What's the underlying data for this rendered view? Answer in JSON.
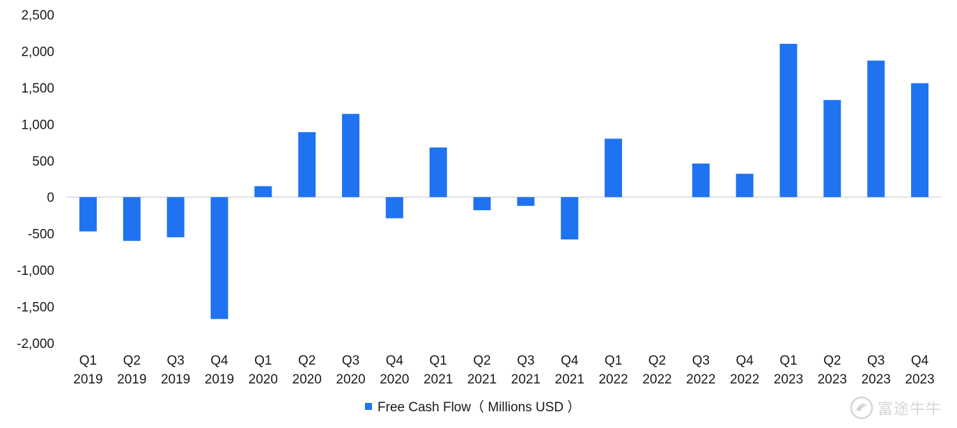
{
  "chart_data": {
    "type": "bar",
    "categories": [
      [
        "Q1",
        "2019"
      ],
      [
        "Q2",
        "2019"
      ],
      [
        "Q3",
        "2019"
      ],
      [
        "Q4",
        "2019"
      ],
      [
        "Q1",
        "2020"
      ],
      [
        "Q2",
        "2020"
      ],
      [
        "Q3",
        "2020"
      ],
      [
        "Q4",
        "2020"
      ],
      [
        "Q1",
        "2021"
      ],
      [
        "Q2",
        "2021"
      ],
      [
        "Q3",
        "2021"
      ],
      [
        "Q4",
        "2021"
      ],
      [
        "Q1",
        "2022"
      ],
      [
        "Q2",
        "2022"
      ],
      [
        "Q3",
        "2022"
      ],
      [
        "Q4",
        "2022"
      ],
      [
        "Q1",
        "2023"
      ],
      [
        "Q2",
        "2023"
      ],
      [
        "Q3",
        "2023"
      ],
      [
        "Q4",
        "2023"
      ]
    ],
    "series": [
      {
        "name": "Free Cash Flow（ Millions USD ）",
        "color": "#1f73f1",
        "values": [
          -470,
          -600,
          -550,
          -1670,
          150,
          890,
          1140,
          -290,
          680,
          -180,
          -120,
          -580,
          800,
          0,
          460,
          320,
          2100,
          1330,
          1870,
          1560
        ]
      }
    ],
    "ylim": [
      -2000,
      2500
    ],
    "yticks": [
      "2,500",
      "2,000",
      "1,500",
      "1,000",
      "500",
      "0",
      "-500",
      "-1,000",
      "-1,500",
      "-2,000"
    ],
    "ytick_values": [
      2500,
      2000,
      1500,
      1000,
      500,
      0,
      -500,
      -1000,
      -1500,
      -2000
    ],
    "legend": {
      "position": "bottom-center"
    },
    "grid": false,
    "zero_line_color": "#d9d9d9"
  },
  "watermark": {
    "text": "富途牛牛",
    "icon": "futu-logo-icon"
  }
}
